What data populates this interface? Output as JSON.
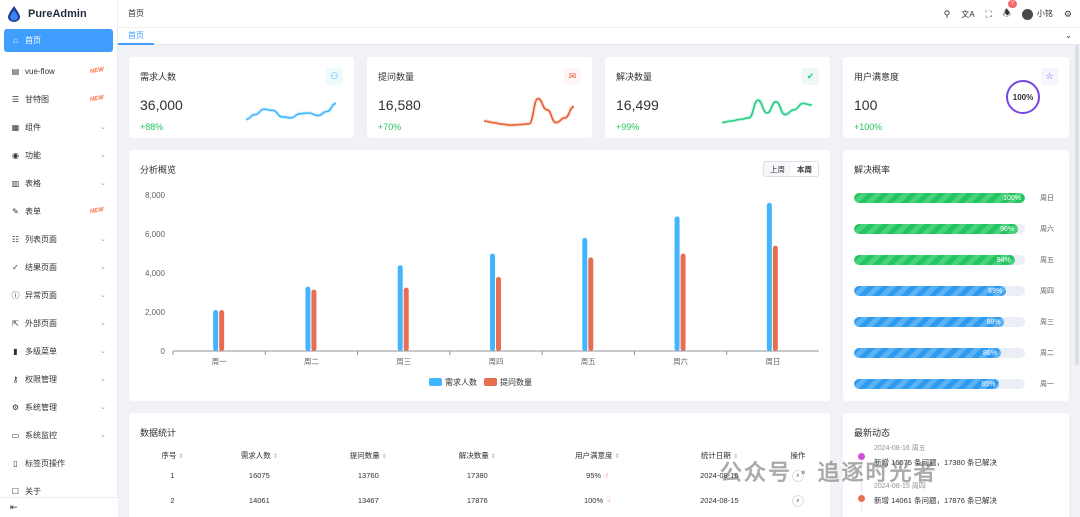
{
  "app": {
    "title": "PureAdmin"
  },
  "sidebar": {
    "items": [
      {
        "label": "首页",
        "icon": "home-icon",
        "active": true
      },
      {
        "label": "vue-flow",
        "icon": "flow-icon",
        "badge": "NEW"
      },
      {
        "label": "甘特图",
        "icon": "gantt-icon",
        "badge": "NEW"
      },
      {
        "label": "组件",
        "icon": "grid-icon",
        "chevron": true
      },
      {
        "label": "功能",
        "icon": "target-icon",
        "chevron": true
      },
      {
        "label": "表格",
        "icon": "table-icon",
        "chevron": true
      },
      {
        "label": "表单",
        "icon": "edit-icon",
        "badge": "NEW"
      },
      {
        "label": "列表页面",
        "icon": "list-icon",
        "chevron": true
      },
      {
        "label": "结果页面",
        "icon": "check-circle-icon",
        "chevron": true
      },
      {
        "label": "异常页面",
        "icon": "info-icon",
        "chevron": true
      },
      {
        "label": "外部页面",
        "icon": "link-icon",
        "chevron": true
      },
      {
        "label": "多级菜单",
        "icon": "bar-icon",
        "chevron": true
      },
      {
        "label": "权限管理",
        "icon": "key-icon",
        "chevron": true
      },
      {
        "label": "系统管理",
        "icon": "gear-icon",
        "chevron": true
      },
      {
        "label": "系统监控",
        "icon": "monitor-icon",
        "chevron": true
      },
      {
        "label": "标签页操作",
        "icon": "tab-icon"
      },
      {
        "label": "关于",
        "icon": "about-icon"
      }
    ]
  },
  "header": {
    "breadcrumb": "首页",
    "notification_count": "7",
    "username": "小铭"
  },
  "tags": {
    "active": "首页"
  },
  "stats": [
    {
      "title": "需求人数",
      "value": "36,000",
      "delta": "+88%",
      "color": "#41b6ff",
      "bg": "#effaff",
      "icon": "users-icon",
      "spark": [
        0.3,
        0.45,
        0.62,
        0.58,
        0.38,
        0.35,
        0.48,
        0.5,
        0.42,
        0.55,
        0.8
      ]
    },
    {
      "title": "提问数量",
      "value": "16,580",
      "delta": "+70%",
      "color": "#e85f33",
      "bg": "#fff5f4",
      "icon": "chat-icon",
      "spark": [
        0.25,
        0.2,
        0.15,
        0.12,
        0.14,
        0.16,
        0.95,
        0.6,
        0.2,
        0.35,
        0.7
      ]
    },
    {
      "title": "解决数量",
      "value": "16,499",
      "delta": "+99%",
      "color": "#26ce83",
      "bg": "#eff8f4",
      "icon": "message-icon",
      "spark": [
        0.2,
        0.25,
        0.3,
        0.35,
        0.9,
        0.5,
        0.85,
        0.45,
        0.6,
        0.8,
        0.75
      ]
    },
    {
      "title": "用户满意度",
      "value": "100",
      "delta": "+100%",
      "color": "#7846e5",
      "bg": "#f6f4fe",
      "icon": "star-icon",
      "ring_label": "100%",
      "ring_value": 100
    }
  ],
  "overview": {
    "title": "分析概览",
    "range_options": [
      "上周",
      "本周"
    ],
    "range_selected": "本周"
  },
  "chart_data": {
    "type": "bar",
    "title": "分析概览",
    "categories": [
      "周一",
      "周二",
      "周三",
      "周四",
      "周五",
      "周六",
      "周日"
    ],
    "series": [
      {
        "name": "需求人数",
        "color": "#41b6ff",
        "values": [
          2100,
          3300,
          4400,
          5000,
          5800,
          6900,
          7600
        ]
      },
      {
        "name": "提问数量",
        "color": "#e86e52",
        "values": [
          2100,
          3150,
          3250,
          3800,
          4800,
          5000,
          5400
        ]
      }
    ],
    "ylim": [
      0,
      8000
    ],
    "yticks": [
      "0",
      "2,000",
      "4,000",
      "6,000",
      "8,000"
    ],
    "legend": "bottom"
  },
  "solve_rate": {
    "title": "解决概率",
    "rows": [
      {
        "value": 100,
        "label": "100%",
        "day": "周日",
        "color": "green"
      },
      {
        "value": 96,
        "label": "96%",
        "day": "周六",
        "color": "green"
      },
      {
        "value": 94,
        "label": "94%",
        "day": "周五",
        "color": "green"
      },
      {
        "value": 89,
        "label": "89%",
        "day": "周四",
        "color": "blue"
      },
      {
        "value": 88,
        "label": "88%",
        "day": "周三",
        "color": "blue"
      },
      {
        "value": 86,
        "label": "86%",
        "day": "周二",
        "color": "blue"
      },
      {
        "value": 85,
        "label": "85%",
        "day": "周一",
        "color": "blue"
      }
    ]
  },
  "data_table": {
    "title": "数据统计",
    "columns": [
      "序号",
      "需求人数",
      "提问数量",
      "解决数量",
      "用户满意度",
      "统计日期",
      "操作"
    ],
    "rows": [
      {
        "index": "1",
        "demand": "16075",
        "questions": "13760",
        "solved": "17380",
        "satisfaction": "95%",
        "date": "2024-08-16"
      },
      {
        "index": "2",
        "demand": "14061",
        "questions": "13467",
        "solved": "17876",
        "satisfaction": "100%",
        "date": "2024-08-15"
      }
    ]
  },
  "latest": {
    "title": "最新动态",
    "items": [
      {
        "time": "2024-08-16 周五",
        "text": "新增 16075 条问题，17380 条已解决",
        "color": "#d14fd8"
      },
      {
        "time": "2024-08-15 周四",
        "text": "新增 14061 条问题，17876 条已解决",
        "color": "#e86e52"
      }
    ]
  },
  "watermark": "公众号 · 追逐时光者"
}
